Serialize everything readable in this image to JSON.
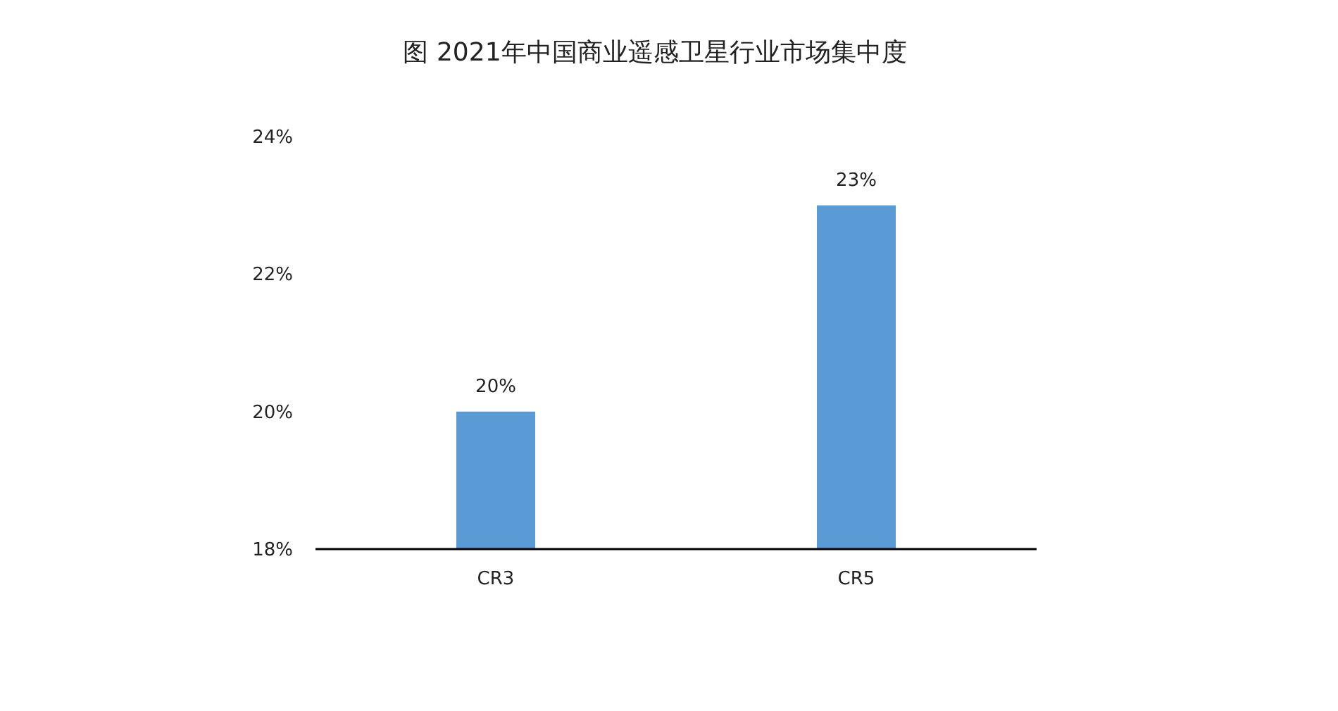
{
  "chart_data": {
    "type": "bar",
    "title": "图 2021年中国商业遥感卫星行业市场集中度",
    "categories": [
      "CR3",
      "CR5"
    ],
    "values": [
      20,
      23
    ],
    "color": "#5b9bd5",
    "value_labels": [
      "20%",
      "23%"
    ],
    "ylim": [
      18,
      24
    ],
    "yticks": [
      {
        "value": 18,
        "label": "18%"
      },
      {
        "value": 20,
        "label": "20%"
      },
      {
        "value": 22,
        "label": "22%"
      },
      {
        "value": 24,
        "label": "24%"
      }
    ],
    "grid": false
  }
}
